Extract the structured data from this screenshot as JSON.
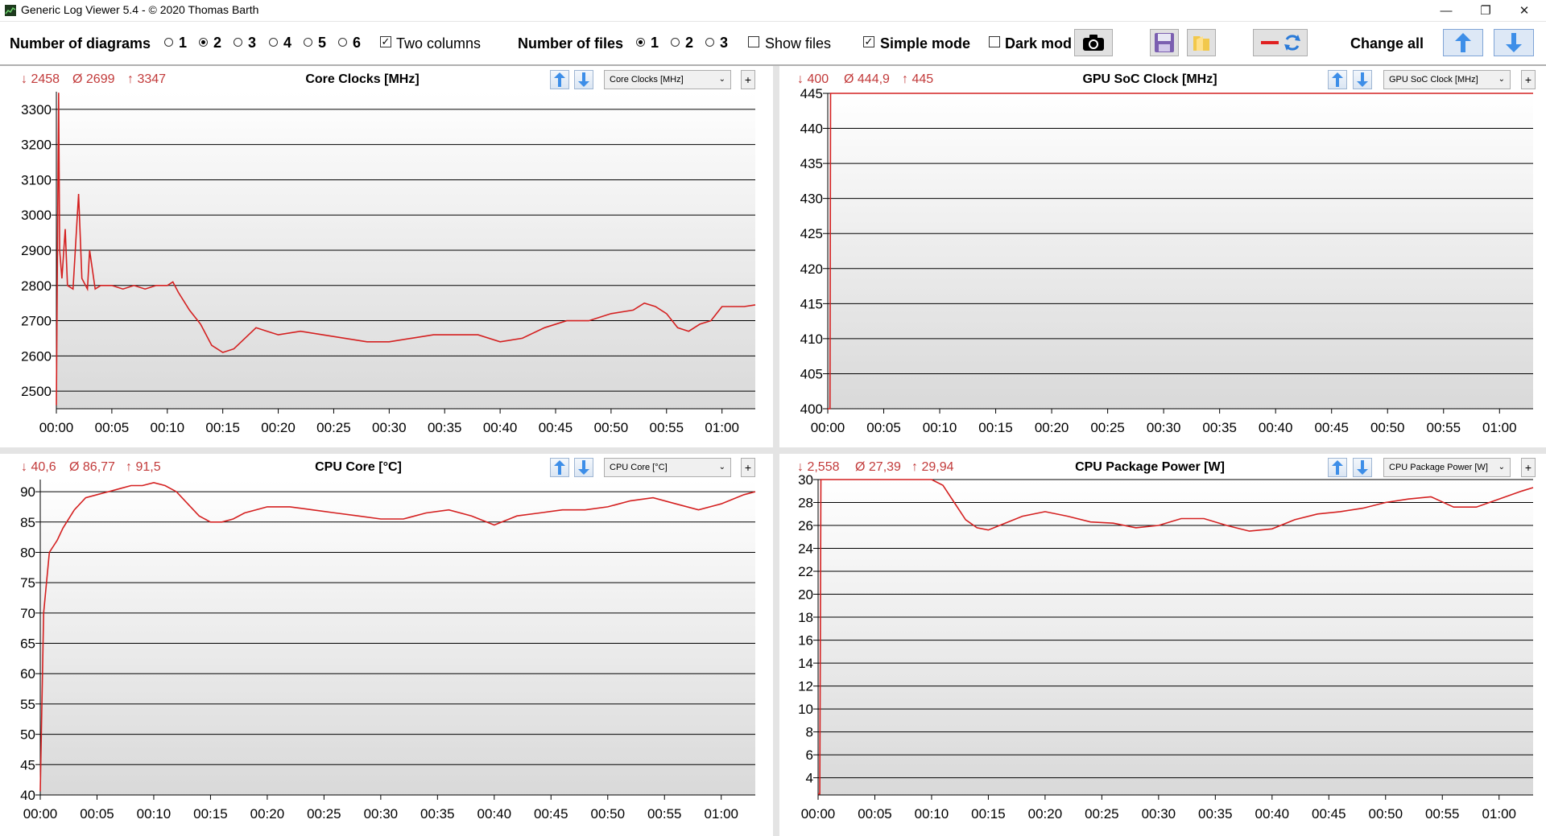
{
  "window": {
    "title": "Generic Log Viewer 5.4 - © 2020 Thomas Barth",
    "minimize": "—",
    "restore": "❐",
    "close": "✕"
  },
  "toolbar": {
    "num_diagrams_label": "Number of diagrams",
    "diagram_options": [
      "1",
      "2",
      "3",
      "4",
      "5",
      "6"
    ],
    "diagram_selected": "2",
    "two_columns_label": "Two columns",
    "two_columns_checked": true,
    "num_files_label": "Number of files",
    "file_options": [
      "1",
      "2",
      "3"
    ],
    "file_selected": "1",
    "show_files_label": "Show files",
    "show_files_checked": false,
    "simple_mode_label": "Simple mode",
    "simple_mode_checked": true,
    "dark_mode_label": "Dark mod",
    "dark_mode_checked": false,
    "change_all_label": "Change all",
    "camera_icon": "camera-icon",
    "save_icon": "floppy-disk-icon",
    "folder_icon": "folder-icon",
    "swap_icon": "line-swap-icon"
  },
  "colors": {
    "series": "#d42020",
    "stat": "#c23a3a",
    "grid": "#000000"
  },
  "panels": [
    {
      "min": "↓ 2458",
      "avg": "Ø 2699",
      "max": "↑ 3347",
      "title": "Core Clocks [MHz]",
      "combo": "Core Clocks [MHz]"
    },
    {
      "min": "↓ 400",
      "avg": "Ø 444,9",
      "max": "↑ 445",
      "title": "GPU SoC Clock [MHz]",
      "combo": "GPU SoC Clock [MHz]"
    },
    {
      "min": "↓ 40,6",
      "avg": "Ø 86,77",
      "max": "↑ 91,5",
      "title": "CPU Core [°C]",
      "combo": "CPU Core [°C]"
    },
    {
      "min": "↓ 2,558",
      "avg": "Ø 27,39",
      "max": "↑ 29,94",
      "title": "CPU Package Power [W]",
      "combo": "CPU Package Power [W]"
    }
  ],
  "chart_data": [
    {
      "type": "line",
      "title": "Core Clocks [MHz]",
      "x_ticks": [
        "00:00",
        "00:05",
        "00:10",
        "00:15",
        "00:20",
        "00:25",
        "00:30",
        "00:35",
        "00:40",
        "00:45",
        "00:50",
        "00:55",
        "01:00"
      ],
      "y_ticks": [
        "2500",
        "2600",
        "2700",
        "2800",
        "2900",
        "3000",
        "3100",
        "3200",
        "3300"
      ],
      "ylim": [
        2450,
        3350
      ],
      "xlim_min": [
        0,
        63
      ],
      "grid": true,
      "x": [
        0,
        0.2,
        0.3,
        0.5,
        0.8,
        1,
        1.5,
        2,
        2.3,
        2.8,
        3,
        3.5,
        4,
        5,
        6,
        7,
        8,
        9,
        10,
        10.5,
        11,
        12,
        13,
        14,
        15,
        16,
        17,
        18,
        19,
        20,
        22,
        24,
        26,
        28,
        30,
        32,
        34,
        36,
        38,
        40,
        42,
        44,
        46,
        48,
        50,
        52,
        53,
        54,
        55,
        56,
        57,
        58,
        59,
        60,
        61,
        62,
        63
      ],
      "values": [
        2460,
        3347,
        2900,
        2820,
        2960,
        2800,
        2790,
        3060,
        2820,
        2790,
        2900,
        2790,
        2800,
        2800,
        2790,
        2800,
        2790,
        2800,
        2800,
        2810,
        2780,
        2730,
        2690,
        2630,
        2610,
        2620,
        2650,
        2680,
        2670,
        2660,
        2670,
        2660,
        2650,
        2640,
        2640,
        2650,
        2660,
        2660,
        2660,
        2640,
        2650,
        2680,
        2700,
        2700,
        2720,
        2730,
        2750,
        2740,
        2720,
        2680,
        2670,
        2690,
        2700,
        2740,
        2740,
        2740,
        2745
      ]
    },
    {
      "type": "line",
      "title": "GPU SoC Clock [MHz]",
      "x_ticks": [
        "00:00",
        "00:05",
        "00:10",
        "00:15",
        "00:20",
        "00:25",
        "00:30",
        "00:35",
        "00:40",
        "00:45",
        "00:50",
        "00:55",
        "01:00"
      ],
      "y_ticks": [
        "400",
        "405",
        "410",
        "415",
        "420",
        "425",
        "430",
        "435",
        "440",
        "445"
      ],
      "ylim": [
        400,
        445
      ],
      "grid": true,
      "x": [
        0,
        0.2,
        0.25,
        63
      ],
      "values": [
        400,
        400,
        445,
        445
      ]
    },
    {
      "type": "line",
      "title": "CPU Core [°C]",
      "x_ticks": [
        "00:00",
        "00:05",
        "00:10",
        "00:15",
        "00:20",
        "00:25",
        "00:30",
        "00:35",
        "00:40",
        "00:45",
        "00:50",
        "00:55",
        "01:00"
      ],
      "y_ticks": [
        "40",
        "45",
        "50",
        "55",
        "60",
        "65",
        "70",
        "75",
        "80",
        "85",
        "90"
      ],
      "ylim": [
        40,
        92
      ],
      "grid": true,
      "x": [
        0,
        0.3,
        0.8,
        1.5,
        2,
        3,
        4,
        5,
        6,
        7,
        8,
        9,
        10,
        11,
        12,
        13,
        14,
        15,
        16,
        17,
        18,
        20,
        22,
        24,
        26,
        28,
        30,
        32,
        34,
        36,
        38,
        40,
        42,
        44,
        46,
        48,
        50,
        52,
        54,
        56,
        58,
        60,
        62,
        63
      ],
      "values": [
        40.6,
        70,
        80,
        82,
        84,
        87,
        89,
        89.5,
        90,
        90.5,
        91,
        91,
        91.5,
        91,
        90,
        88,
        86,
        85,
        85,
        85.5,
        86.5,
        87.5,
        87.5,
        87,
        86.5,
        86,
        85.5,
        85.5,
        86.5,
        87,
        86,
        84.5,
        86,
        86.5,
        87,
        87,
        87.5,
        88.5,
        89,
        88,
        87,
        88,
        89.5,
        90
      ]
    },
    {
      "type": "line",
      "title": "CPU Package Power [W]",
      "x_ticks": [
        "00:00",
        "00:05",
        "00:10",
        "00:15",
        "00:20",
        "00:25",
        "00:30",
        "00:35",
        "00:40",
        "00:45",
        "00:50",
        "00:55",
        "01:00"
      ],
      "y_ticks": [
        "4",
        "6",
        "8",
        "10",
        "12",
        "14",
        "16",
        "18",
        "20",
        "22",
        "24",
        "26",
        "28",
        "30"
      ],
      "ylim": [
        2.5,
        30
      ],
      "grid": true,
      "x": [
        0,
        0.15,
        0.25,
        2,
        5,
        8,
        10,
        11,
        12,
        13,
        14,
        15,
        16,
        18,
        20,
        22,
        24,
        26,
        28,
        30,
        32,
        34,
        36,
        38,
        40,
        42,
        44,
        46,
        48,
        50,
        52,
        54,
        56,
        58,
        60,
        62,
        63
      ],
      "values": [
        2.6,
        2.6,
        30,
        30,
        30,
        30,
        30,
        29.5,
        28,
        26.5,
        25.8,
        25.6,
        26,
        26.8,
        27.2,
        26.8,
        26.3,
        26.2,
        25.8,
        26,
        26.6,
        26.6,
        26,
        25.5,
        25.7,
        26.5,
        27,
        27.2,
        27.5,
        28,
        28.3,
        28.5,
        27.6,
        27.6,
        28.3,
        29,
        29.3
      ]
    }
  ]
}
